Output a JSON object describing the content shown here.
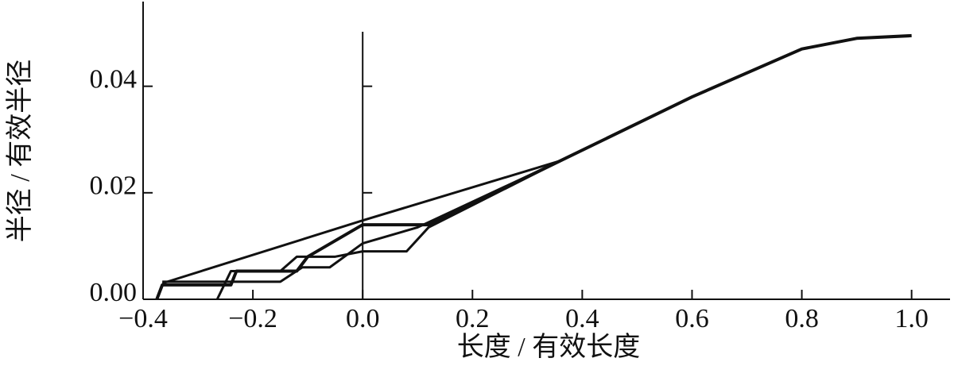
{
  "chart_data": {
    "type": "line",
    "x_label": "长度 / 有效长度",
    "y_label": "半径 / 有效半径",
    "xlim": [
      -0.4,
      1.07
    ],
    "ylim": [
      0,
      0.0559
    ],
    "xticks": [
      {
        "value": -0.4,
        "label": "−0.4"
      },
      {
        "value": -0.2,
        "label": "−0.2"
      },
      {
        "value": 0,
        "label": "0.0"
      },
      {
        "value": 0.2,
        "label": "0.2"
      },
      {
        "value": 0.4,
        "label": "0.4"
      },
      {
        "value": 0.6,
        "label": "0.6"
      },
      {
        "value": 0.8,
        "label": "0.8"
      },
      {
        "value": 1,
        "label": "1.0"
      }
    ],
    "yticks": [
      {
        "value": 0,
        "label": "0.00"
      },
      {
        "value": 0.02,
        "label": "0.02"
      },
      {
        "value": 0.04,
        "label": "0.04"
      }
    ],
    "series": [
      {
        "color": "#111111",
        "x": [
          -0.375,
          -0.365,
          -0.24,
          -0.23,
          -0.12,
          -0.1,
          0.0,
          0.12,
          0.36,
          0.6,
          0.8,
          0.9,
          1.0
        ],
        "values": [
          0,
          0.0027,
          0.0027,
          0.0053,
          0.0053,
          0.008,
          0.014,
          0.014,
          0.026,
          0.038,
          0.047,
          0.049,
          0.0495
        ]
      },
      {
        "color": "#111111",
        "x": [
          -0.365,
          0.0,
          0.36
        ],
        "values": [
          0.003,
          0.0148,
          0.026
        ]
      },
      {
        "color": "#111111",
        "x": [
          -0.265,
          -0.24,
          -0.15,
          -0.12,
          -0.05,
          0.0,
          0.08,
          0.12,
          0.36
        ],
        "values": [
          0,
          0.0053,
          0.0053,
          0.008,
          0.008,
          0.009,
          0.009,
          0.0135,
          0.026
        ]
      },
      {
        "color": "#111111",
        "x": [
          -0.365,
          -0.15,
          -0.11,
          -0.06,
          0.0,
          0.1,
          0.36
        ],
        "values": [
          0.0033,
          0.0033,
          0.006,
          0.006,
          0.0105,
          0.0135,
          0.026
        ]
      }
    ]
  }
}
